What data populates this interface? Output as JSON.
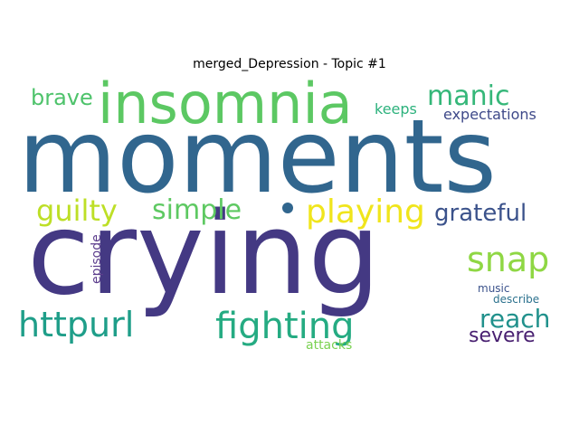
{
  "title": "merged_Depression - Topic #1",
  "words": [
    {
      "text": "moments",
      "color": "#31668e"
    },
    {
      "text": "crying",
      "color": "#443983"
    },
    {
      "text": "insomnia",
      "color": "#5cc863"
    },
    {
      "text": "fighting",
      "color": "#25ab82"
    },
    {
      "text": "httpurl",
      "color": "#1f9e89"
    },
    {
      "text": "playing",
      "color": "#f0e51c"
    },
    {
      "text": "simple",
      "color": "#5ec962"
    },
    {
      "text": "guilty",
      "color": "#bddf26"
    },
    {
      "text": "manic",
      "color": "#35b779"
    },
    {
      "text": "snap",
      "color": "#8fd744"
    },
    {
      "text": "grateful",
      "color": "#3b528b"
    },
    {
      "text": "brave",
      "color": "#4ec36b"
    },
    {
      "text": "reach",
      "color": "#21918c"
    },
    {
      "text": "severe",
      "color": "#481f70"
    },
    {
      "text": "keeps",
      "color": "#2db27d"
    },
    {
      "text": "expectations",
      "color": "#3e4989"
    },
    {
      "text": "episode",
      "color": "#5b3c8c"
    },
    {
      "text": "music",
      "color": "#3b528b"
    },
    {
      "text": "describe",
      "color": "#2c728e"
    },
    {
      "text": "attacks",
      "color": "#7ad151"
    }
  ]
}
